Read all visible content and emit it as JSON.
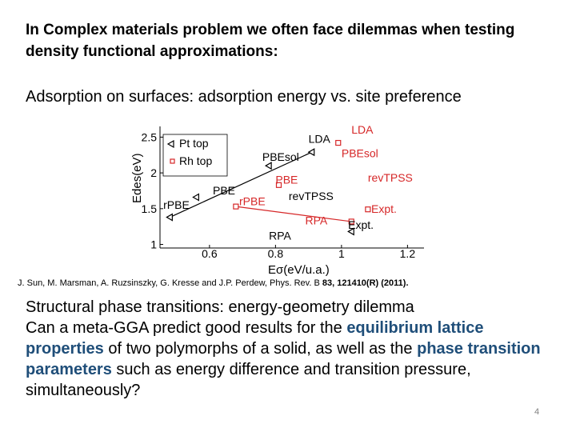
{
  "slide": {
    "title": "In Complex materials problem we often face dilemmas when testing density functional approximations:",
    "subtitle": "Adsorption on surfaces: adsorption energy vs. site preference",
    "citation_main": "J. Sun, M. Marsman, A. Ruzsinszky, G. Kresse and J.P. Perdew, Phys. Rev. B ",
    "citation_ref": "83, 121410(R) (2011).",
    "body_heading": "Structural phase transitions: energy-geometry dilemma",
    "body": {
      "part1": "Can a meta-GGA predict good results for the ",
      "hl1": "equilibrium lattice properties",
      "part2": " of two polymorphs of a solid, as well as the ",
      "hl2": "phase transition parameters",
      "part3": " such as energy difference and transition pressure, simultaneously?"
    },
    "page_number": "4"
  },
  "chart_data": {
    "type": "line",
    "xlabel": "Eσ(eV/u.a.)",
    "ylabel": "Edes(eV)",
    "x_ticks": [
      "0.6",
      "0.8",
      "1",
      "1.2"
    ],
    "y_ticks": [
      "1",
      "1.5",
      "2",
      "2.5"
    ],
    "xlim": [
      0.45,
      1.25
    ],
    "ylim": [
      0.95,
      2.65
    ],
    "legend": {
      "position": "top-left",
      "entries": [
        {
          "label": "Pt top",
          "marker": "triangle-left"
        },
        {
          "label": "Rh top",
          "marker": "square"
        }
      ]
    },
    "series": [
      {
        "name": "Pt top",
        "marker": "triangle-left",
        "x": [
          0.48,
          0.56,
          0.78,
          0.91,
          1.03
        ],
        "y": [
          1.38,
          1.66,
          2.1,
          2.29,
          1.18
        ]
      },
      {
        "name": "Rh top",
        "marker": "square",
        "x": [
          0.68,
          0.81,
          0.99,
          1.03,
          1.08
        ],
        "y": [
          1.53,
          1.83,
          2.42,
          1.32,
          1.49
        ]
      }
    ],
    "point_labels": [
      {
        "text": "LDA",
        "x": 0.9,
        "y": 2.42,
        "color": "#000000"
      },
      {
        "text": "PBEsol",
        "x": 0.76,
        "y": 2.17,
        "color": "#000000"
      },
      {
        "text": "PBE",
        "x": 0.61,
        "y": 1.7,
        "color": "#000000"
      },
      {
        "text": "rPBE",
        "x": 0.46,
        "y": 1.5,
        "color": "#000000"
      },
      {
        "text": "RPA",
        "x": 0.78,
        "y": 1.07,
        "color": "#000000"
      },
      {
        "text": "revTPSS",
        "x": 0.84,
        "y": 1.62,
        "color": "#000000"
      },
      {
        "text": "Expt.",
        "x": 1.02,
        "y": 1.22,
        "color": "#000000"
      },
      {
        "text": "LDA",
        "x": 1.03,
        "y": 2.55,
        "color": "#d62728"
      },
      {
        "text": "PBEsol",
        "x": 1.0,
        "y": 2.22,
        "color": "#d62728"
      },
      {
        "text": "revTPSS",
        "x": 1.08,
        "y": 1.88,
        "color": "#d62728"
      },
      {
        "text": "PBE",
        "x": 0.8,
        "y": 1.85,
        "color": "#d62728"
      },
      {
        "text": "rPBE",
        "x": 0.69,
        "y": 1.55,
        "color": "#d62728"
      },
      {
        "text": "RPA",
        "x": 0.89,
        "y": 1.28,
        "color": "#d62728"
      },
      {
        "text": "Expt.",
        "x": 1.09,
        "y": 1.44,
        "color": "#d62728"
      }
    ]
  }
}
